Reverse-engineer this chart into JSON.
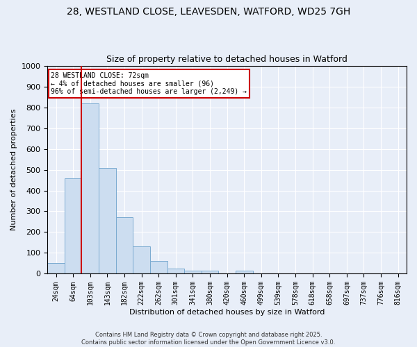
{
  "title_line1": "28, WESTLAND CLOSE, LEAVESDEN, WATFORD, WD25 7GH",
  "title_line2": "Size of property relative to detached houses in Watford",
  "xlabel": "Distribution of detached houses by size in Watford",
  "ylabel": "Number of detached properties",
  "bar_color": "#ccddf0",
  "bar_edge_color": "#7aaad0",
  "background_color": "#e8eef8",
  "grid_color": "#ffffff",
  "vline_color": "#cc0000",
  "vline_x": 1.5,
  "categories": [
    "24sqm",
    "64sqm",
    "103sqm",
    "143sqm",
    "182sqm",
    "222sqm",
    "262sqm",
    "301sqm",
    "341sqm",
    "380sqm",
    "420sqm",
    "460sqm",
    "499sqm",
    "539sqm",
    "578sqm",
    "618sqm",
    "658sqm",
    "697sqm",
    "737sqm",
    "776sqm",
    "816sqm"
  ],
  "values": [
    50,
    460,
    820,
    510,
    270,
    130,
    60,
    25,
    15,
    15,
    0,
    15,
    0,
    0,
    0,
    0,
    0,
    0,
    0,
    0,
    0
  ],
  "ylim": [
    0,
    1000
  ],
  "yticks": [
    0,
    100,
    200,
    300,
    400,
    500,
    600,
    700,
    800,
    900,
    1000
  ],
  "annotation_text": "28 WESTLAND CLOSE: 72sqm\n← 4% of detached houses are smaller (96)\n96% of semi-detached houses are larger (2,249) →",
  "annotation_box_color": "#ffffff",
  "annotation_box_edge": "#cc0000",
  "footnote": "Contains HM Land Registry data © Crown copyright and database right 2025.\nContains public sector information licensed under the Open Government Licence v3.0."
}
